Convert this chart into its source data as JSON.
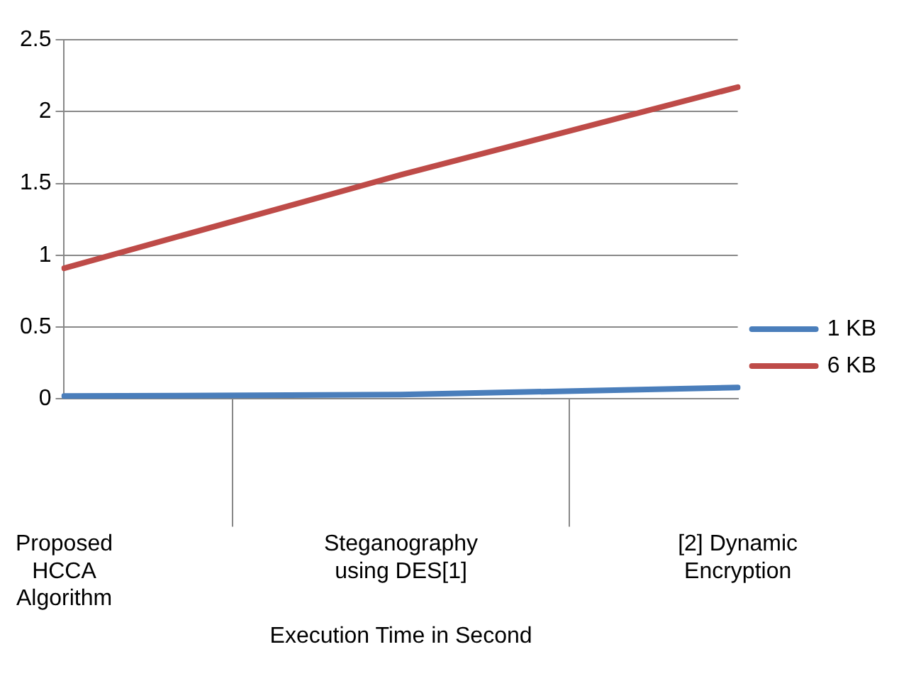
{
  "chart_data": {
    "type": "line",
    "xlabel": "Execution Time in Second",
    "categories": [
      "Proposed HCCA Algorithm",
      "Steganography using DES[1]",
      "[2] Dynamic Encryption"
    ],
    "series": [
      {
        "name": "1 KB",
        "color": "#4a7ebb",
        "values": [
          0.02,
          0.03,
          0.08
        ]
      },
      {
        "name": "6 KB",
        "color": "#be4b48",
        "values": [
          0.91,
          1.56,
          2.17
        ]
      }
    ],
    "ylim": [
      0,
      2.5
    ],
    "yticks": [
      0,
      0.5,
      1,
      1.5,
      2,
      2.5
    ],
    "grid": "y",
    "legend": "right",
    "marker": "none",
    "line_style": "solid"
  }
}
